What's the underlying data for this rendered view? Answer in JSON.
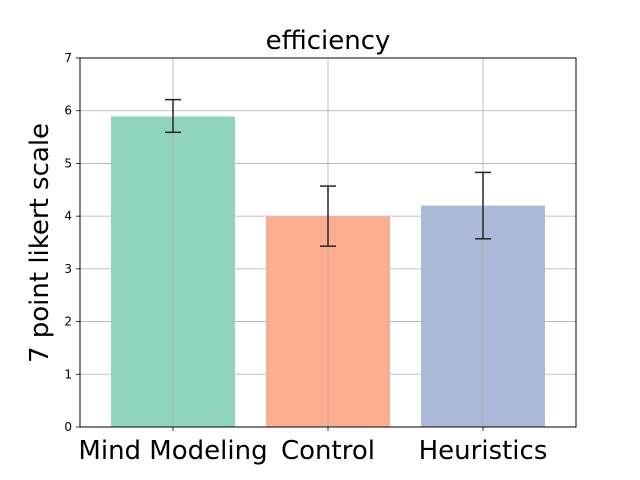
{
  "chart_data": {
    "type": "bar",
    "title": "efficiency",
    "xlabel": "",
    "ylabel": "7 point likert scale",
    "ylim": [
      0,
      7
    ],
    "yticks": [
      0,
      1,
      2,
      3,
      4,
      5,
      6,
      7
    ],
    "categories": [
      "Mind Modeling",
      "Control",
      "Heuristics"
    ],
    "values": [
      5.89,
      3.99,
      4.2
    ],
    "error_low": [
      5.59,
      3.43,
      3.57
    ],
    "error_high": [
      6.21,
      4.57,
      4.83
    ],
    "colors": [
      "#8fd4bd",
      "#fdae8f",
      "#abb9d9"
    ],
    "grid": true
  }
}
